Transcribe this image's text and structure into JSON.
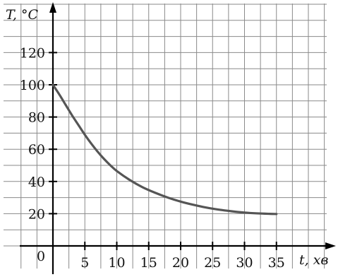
{
  "chart_data": {
    "type": "line",
    "title": "",
    "xlabel": "t, хв",
    "ylabel": "T, °C",
    "origin_label": "0",
    "xlim": [
      -5,
      45
    ],
    "ylim": [
      -5,
      150
    ],
    "x_ticks": [
      5,
      10,
      15,
      20,
      25,
      30,
      35
    ],
    "y_ticks": [
      20,
      40,
      60,
      80,
      100,
      120
    ],
    "grid": true,
    "grid_step_x": 2.5,
    "grid_step_y": 10,
    "series": [
      {
        "x": [
          0,
          1,
          2,
          3,
          4,
          5,
          6,
          7,
          8,
          9,
          10,
          12,
          14,
          16,
          18,
          20,
          22,
          24,
          26,
          28,
          30,
          32,
          34,
          35
        ],
        "values": [
          100,
          94,
          87.5,
          81,
          75,
          69,
          63.5,
          58.5,
          54,
          50,
          46.5,
          41,
          36.5,
          33,
          30,
          27.5,
          25.5,
          23.8,
          22.5,
          21.5,
          20.7,
          20.2,
          19.9,
          19.8
        ],
        "color": "#555555"
      }
    ]
  }
}
